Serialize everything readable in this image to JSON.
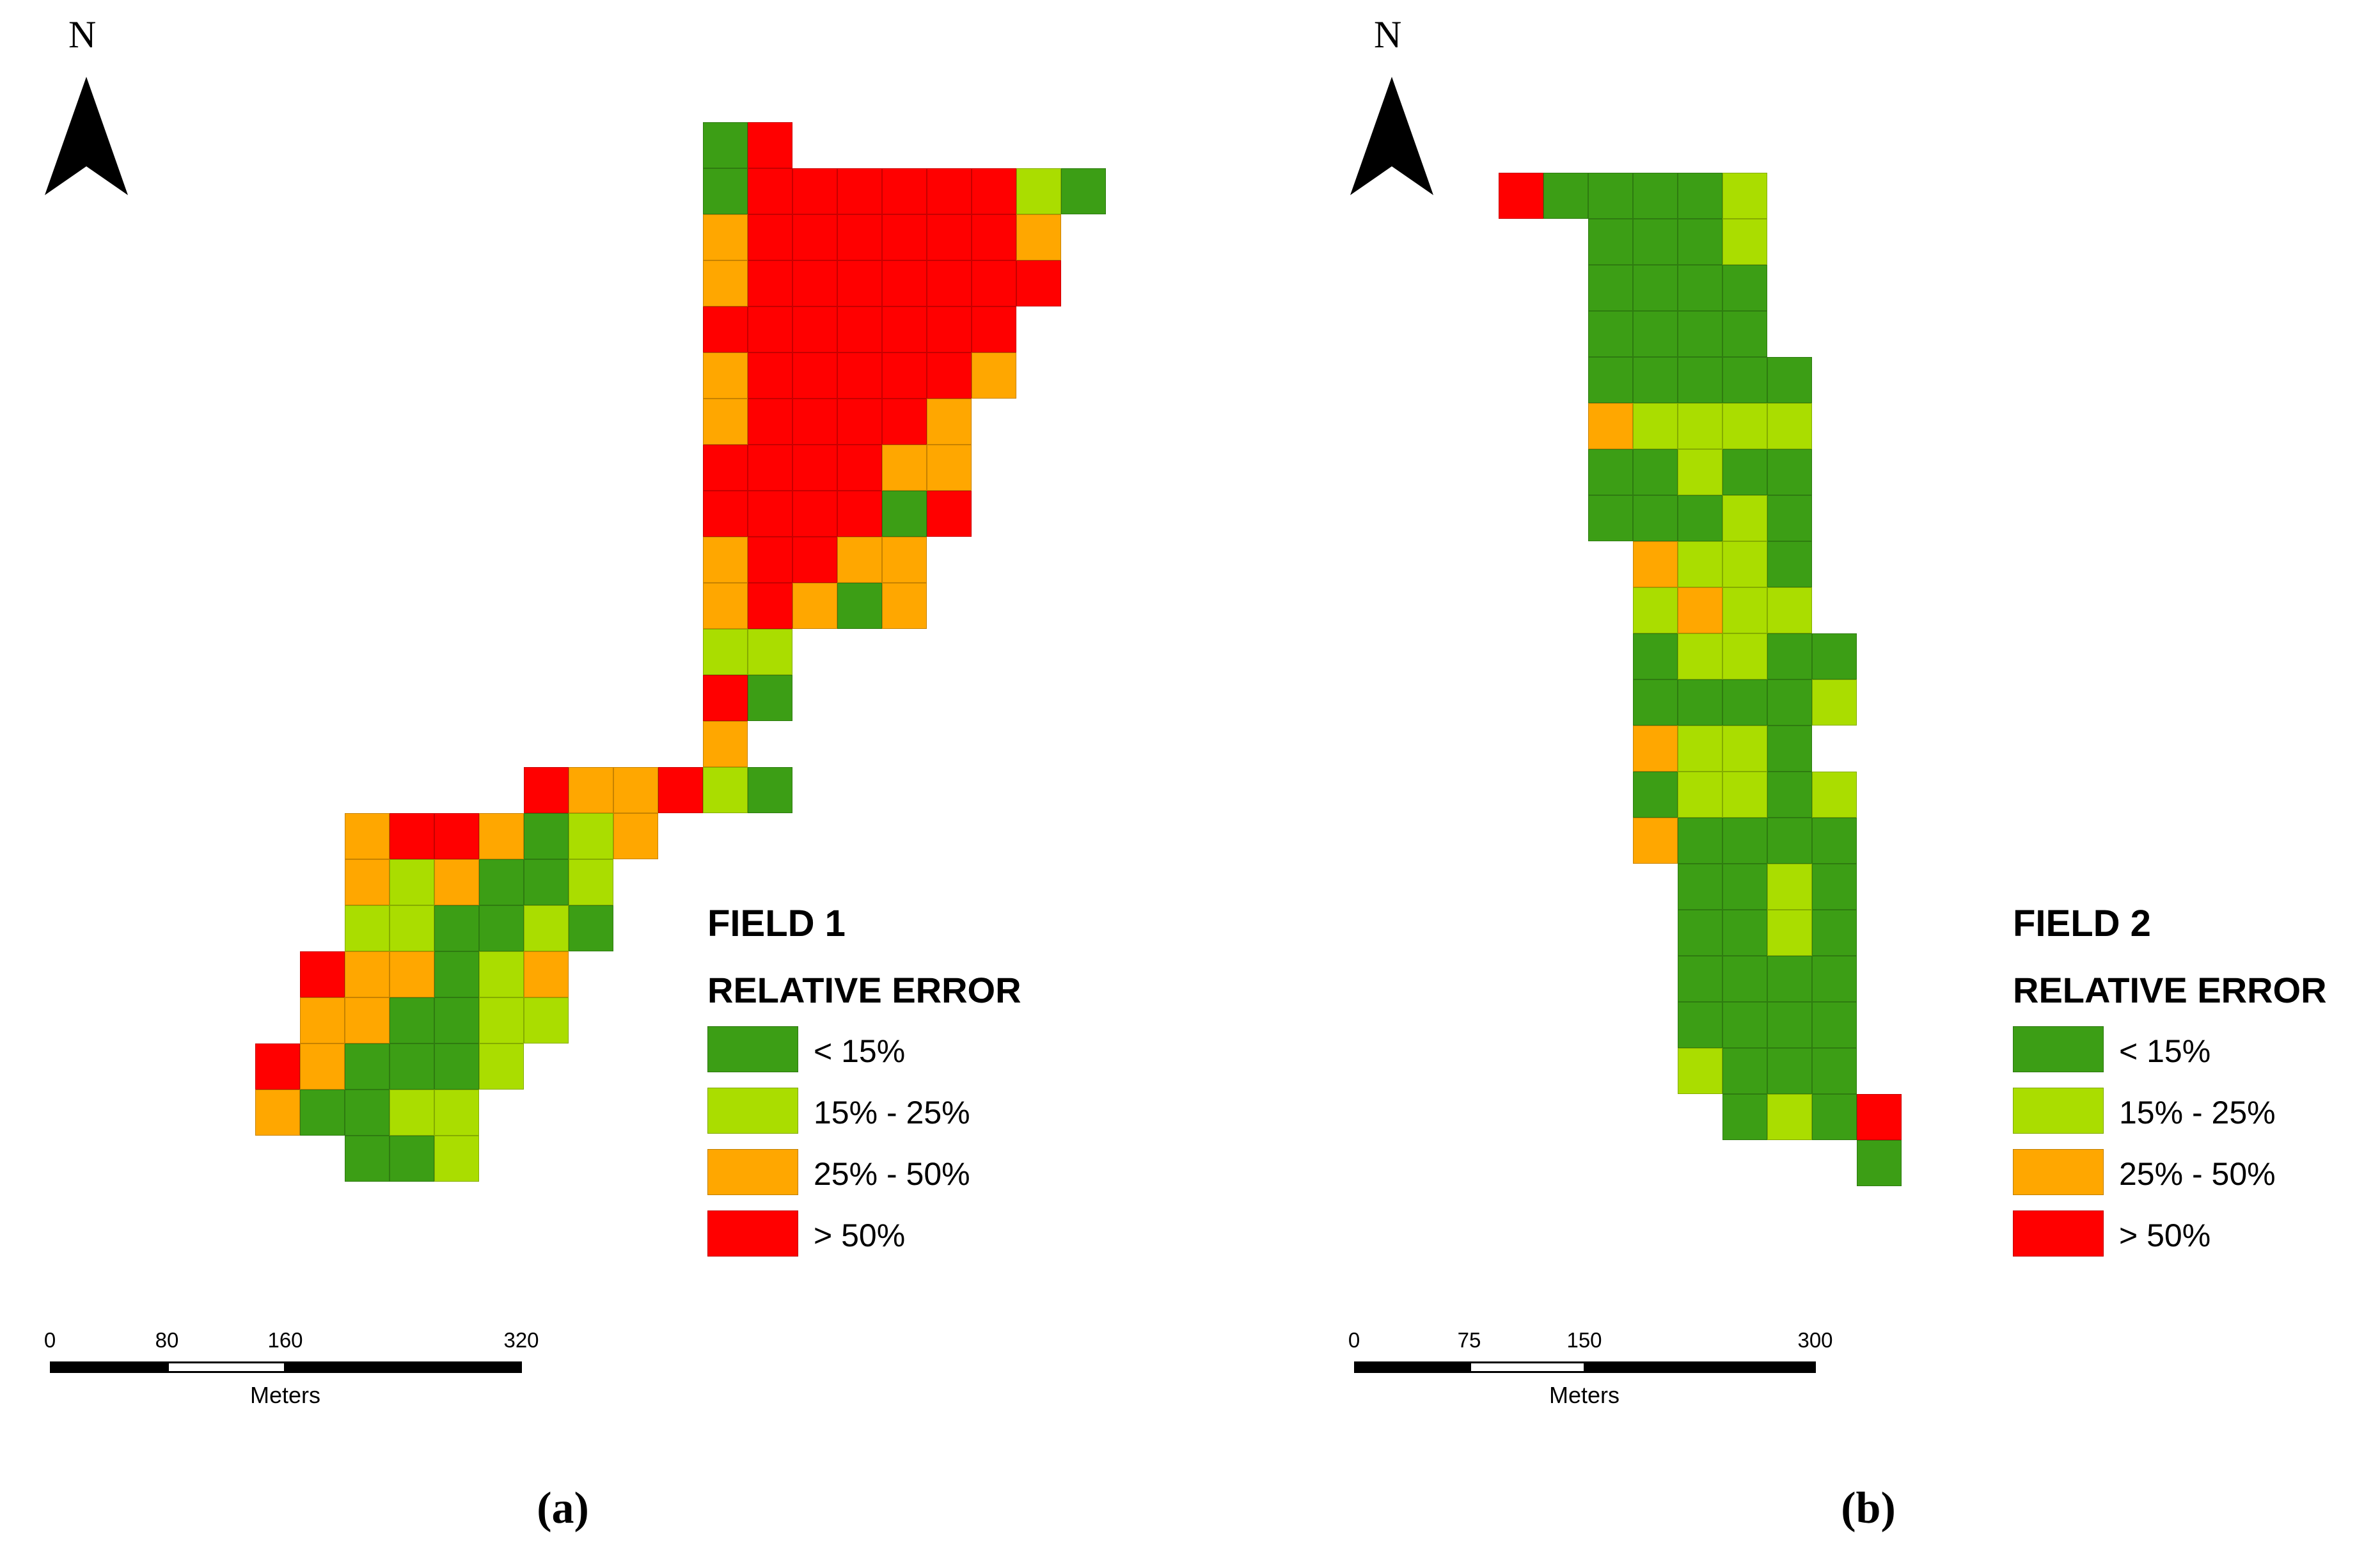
{
  "colors": {
    "lt15": "#3c9e15",
    "15_25": "#aadd00",
    "25_50": "#ffa700",
    "gt50": "#ff0000"
  },
  "panels": [
    {
      "north_label": "N",
      "legend": {
        "title": "FIELD 1",
        "subtitle": "RELATIVE ERROR",
        "items": [
          {
            "label": "< 15%",
            "class": "G"
          },
          {
            "label": "15% - 25%",
            "class": "L"
          },
          {
            "label": "25% - 50%",
            "class": "O"
          },
          {
            "label": "> 50%",
            "class": "R"
          }
        ]
      },
      "scalebar": {
        "ticks": [
          "0",
          "80",
          "160",
          "320"
        ],
        "unit": "Meters"
      },
      "caption": "(a)",
      "cells": [
        "............GR.........",
        "............GRRRRRRLG..",
        "............ORRRRRRO...",
        "............ORRRRRRR...",
        "............RRRRRRR....",
        "............ORRRRRO....",
        "............ORRRRO.....",
        "............RRRROO.....",
        "............RRRRGR.....",
        "............ORROO......",
        "............OROGO......",
        "............LL.........",
        "............RG.........",
        "............O..........",
        "........ROORLG.........",
        "....ORROGLO............",
        "....OLOGGL.............",
        "....LLGGLG.............",
        "...ROOGLO..............",
        "...OOGGLL..............",
        "..ROGGGL...............",
        "..OGGLL................",
        "....GGL................"
      ]
    },
    {
      "north_label": "N",
      "legend": {
        "title": "FIELD 2",
        "subtitle": "RELATIVE ERROR",
        "items": [
          {
            "label": "< 15%",
            "class": "G"
          },
          {
            "label": "15% - 25%",
            "class": "L"
          },
          {
            "label": "25% - 50%",
            "class": "O"
          },
          {
            "label": "> 50%",
            "class": "R"
          }
        ]
      },
      "scalebar": {
        "ticks": [
          "0",
          "75",
          "150",
          "300"
        ],
        "unit": "Meters"
      },
      "caption": "(b)",
      "cells": [
        "RGGGGL....",
        "..GGGL....",
        "..GGGG....",
        "..GGGG....",
        "..GGGGG...",
        "..OLLLL...",
        "..GGLGG...",
        "..GGGLG...",
        "...OLLG...",
        "...LOLL...",
        "...GLLGG..",
        "...GGGGL..",
        "...OLLG...",
        "...GLLGL..",
        "...OGGGG..",
        "....GGLG..",
        "....GGLG..",
        "....GGGG..",
        "....GGGG..",
        "....LGGG..",
        ".....GLGR.",
        "........G."
      ]
    }
  ]
}
